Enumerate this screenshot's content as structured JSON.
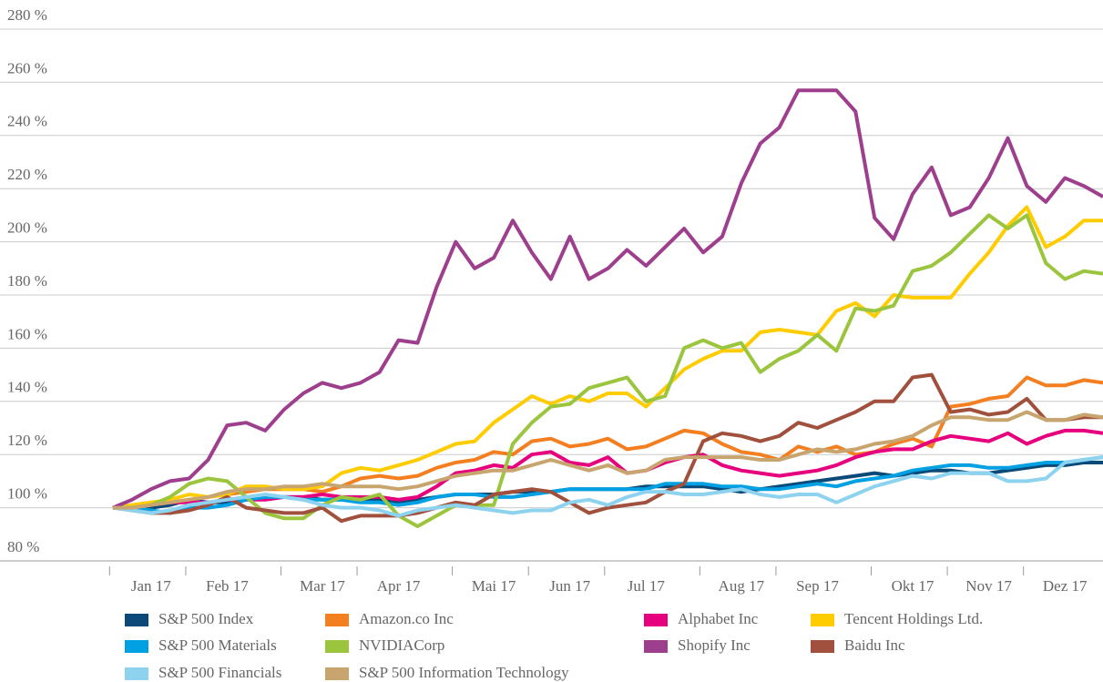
{
  "chart_data": {
    "type": "line",
    "categories": [
      null,
      null,
      "Jan 17",
      null,
      null,
      null,
      "Feb 17",
      null,
      null,
      null,
      null,
      "Mar 17",
      null,
      null,
      null,
      "Apr 17",
      null,
      null,
      null,
      null,
      "Mai 17",
      null,
      null,
      null,
      "Jun 17",
      null,
      null,
      null,
      "Jul 17",
      null,
      null,
      null,
      null,
      "Aug 17",
      null,
      null,
      null,
      "Sep 17",
      null,
      null,
      null,
      null,
      "Okt 17",
      null,
      null,
      null,
      "Nov 17",
      null,
      null,
      null,
      "Dez 17",
      null,
      null
    ],
    "ylim": [
      80,
      280
    ],
    "yticks": [
      {
        "value": 80,
        "label": "80 %"
      },
      {
        "value": 100,
        "label": "100 %"
      },
      {
        "value": 120,
        "label": "120 %"
      },
      {
        "value": 140,
        "label": "140 %"
      },
      {
        "value": 160,
        "label": "160 %"
      },
      {
        "value": 180,
        "label": "180 %"
      },
      {
        "value": 200,
        "label": "200 %"
      },
      {
        "value": 220,
        "label": "220 %"
      },
      {
        "value": 240,
        "label": "240 %"
      },
      {
        "value": 260,
        "label": "260 %"
      },
      {
        "value": 280,
        "label": "280 %"
      }
    ],
    "grid": true,
    "series": [
      {
        "name": "S&P 500 Index",
        "color": "#0b4a78",
        "values": [
          100,
          100,
          100,
          101,
          103,
          102,
          102,
          103,
          104,
          104,
          104,
          103,
          103,
          103,
          103,
          102,
          103,
          104,
          105,
          105,
          105,
          106,
          106,
          106,
          107,
          107,
          107,
          107,
          108,
          108,
          108,
          108,
          107,
          106,
          107,
          108,
          109,
          110,
          111,
          112,
          113,
          112,
          113,
          114,
          114,
          113,
          113,
          114,
          115,
          116,
          116,
          117,
          117
        ]
      },
      {
        "name": "Amazon.co Inc",
        "color": "#f47f20",
        "values": [
          100,
          101,
          102,
          102,
          103,
          104,
          105,
          106,
          107,
          107,
          107,
          106,
          108,
          111,
          112,
          111,
          112,
          115,
          117,
          118,
          121,
          120,
          125,
          126,
          123,
          124,
          126,
          122,
          123,
          126,
          129,
          128,
          124,
          121,
          120,
          118,
          123,
          121,
          123,
          120,
          121,
          124,
          126,
          123,
          138,
          139,
          141,
          142,
          149,
          146,
          146,
          148,
          147
        ]
      },
      {
        "name": "Alphabet Inc",
        "color": "#e6007e",
        "values": [
          100,
          100,
          101,
          102,
          102,
          102,
          103,
          103,
          103,
          104,
          104,
          105,
          104,
          104,
          104,
          103,
          104,
          108,
          113,
          114,
          116,
          115,
          120,
          121,
          117,
          116,
          119,
          113,
          114,
          117,
          119,
          120,
          116,
          114,
          113,
          112,
          113,
          114,
          116,
          119,
          121,
          122,
          122,
          125,
          127,
          126,
          125,
          128,
          124,
          127,
          129,
          129,
          128
        ]
      },
      {
        "name": "Tencent Holdings Ltd.",
        "color": "#ffcc00",
        "values": [
          100,
          101,
          102,
          103,
          105,
          104,
          105,
          108,
          108,
          107,
          107,
          108,
          113,
          115,
          114,
          116,
          118,
          121,
          124,
          125,
          132,
          137,
          142,
          139,
          142,
          140,
          143,
          143,
          138,
          145,
          152,
          156,
          159,
          159,
          166,
          167,
          166,
          165,
          174,
          177,
          172,
          180,
          179,
          179,
          179,
          188,
          196,
          206,
          213,
          198,
          202,
          208,
          208
        ]
      },
      {
        "name": "S&P 500 Materials",
        "color": "#00a0e3",
        "values": [
          100,
          100,
          99,
          98,
          100,
          100,
          101,
          103,
          104,
          104,
          103,
          103,
          103,
          102,
          102,
          101,
          102,
          104,
          105,
          105,
          104,
          104,
          105,
          106,
          107,
          107,
          107,
          107,
          107,
          109,
          109,
          109,
          108,
          108,
          107,
          107,
          108,
          109,
          108,
          110,
          111,
          112,
          114,
          115,
          116,
          116,
          115,
          115,
          116,
          117,
          117,
          118,
          119
        ]
      },
      {
        "name": "NVIDIACorp",
        "color": "#9ac53c",
        "values": [
          100,
          100,
          101,
          104,
          109,
          111,
          110,
          104,
          98,
          96,
          96,
          101,
          104,
          103,
          105,
          97,
          93,
          97,
          101,
          101,
          101,
          124,
          132,
          138,
          139,
          145,
          147,
          149,
          140,
          142,
          160,
          163,
          160,
          162,
          151,
          156,
          159,
          165,
          159,
          175,
          174,
          176,
          189,
          191,
          196,
          203,
          210,
          205,
          210,
          192,
          186,
          189,
          188
        ]
      },
      {
        "name": "Shopify Inc",
        "color": "#9e3f8e",
        "values": [
          100,
          103,
          107,
          110,
          111,
          118,
          131,
          132,
          129,
          137,
          143,
          147,
          145,
          147,
          151,
          163,
          162,
          183,
          200,
          190,
          194,
          208,
          196,
          186,
          202,
          186,
          190,
          197,
          191,
          198,
          205,
          196,
          202,
          222,
          237,
          243,
          257,
          257,
          257,
          249,
          209,
          201,
          218,
          228,
          210,
          213,
          224,
          239,
          221,
          215,
          224,
          221,
          217
        ]
      },
      {
        "name": "Baidu Inc",
        "color": "#a0503c",
        "values": [
          100,
          99,
          98,
          98,
          99,
          101,
          104,
          100,
          99,
          98,
          98,
          100,
          95,
          97,
          97,
          97,
          98,
          100,
          102,
          101,
          105,
          106,
          107,
          106,
          102,
          98,
          100,
          101,
          102,
          106,
          109,
          125,
          128,
          127,
          125,
          127,
          132,
          130,
          133,
          136,
          140,
          140,
          149,
          150,
          136,
          137,
          135,
          136,
          141,
          133,
          133,
          134,
          134
        ]
      },
      {
        "name": "S&P 500 Financials",
        "color": "#8dd3f0",
        "values": [
          100,
          99,
          98,
          99,
          101,
          102,
          103,
          104,
          105,
          104,
          103,
          101,
          100,
          100,
          99,
          97,
          99,
          100,
          101,
          100,
          99,
          98,
          99,
          99,
          102,
          103,
          101,
          104,
          106,
          106,
          105,
          105,
          106,
          107,
          105,
          104,
          105,
          105,
          102,
          105,
          108,
          110,
          112,
          111,
          113,
          113,
          113,
          110,
          110,
          111,
          117,
          118,
          119
        ]
      },
      {
        "name": "S&P 500 Information Technology",
        "color": "#c8a46e",
        "values": [
          100,
          100,
          101,
          102,
          103,
          104,
          106,
          107,
          107,
          108,
          108,
          109,
          108,
          108,
          108,
          107,
          108,
          110,
          112,
          113,
          114,
          114,
          116,
          118,
          116,
          114,
          116,
          113,
          114,
          118,
          119,
          119,
          119,
          119,
          118,
          118,
          120,
          122,
          121,
          122,
          124,
          125,
          127,
          131,
          134,
          134,
          133,
          133,
          136,
          133,
          133,
          135,
          134
        ]
      }
    ]
  }
}
